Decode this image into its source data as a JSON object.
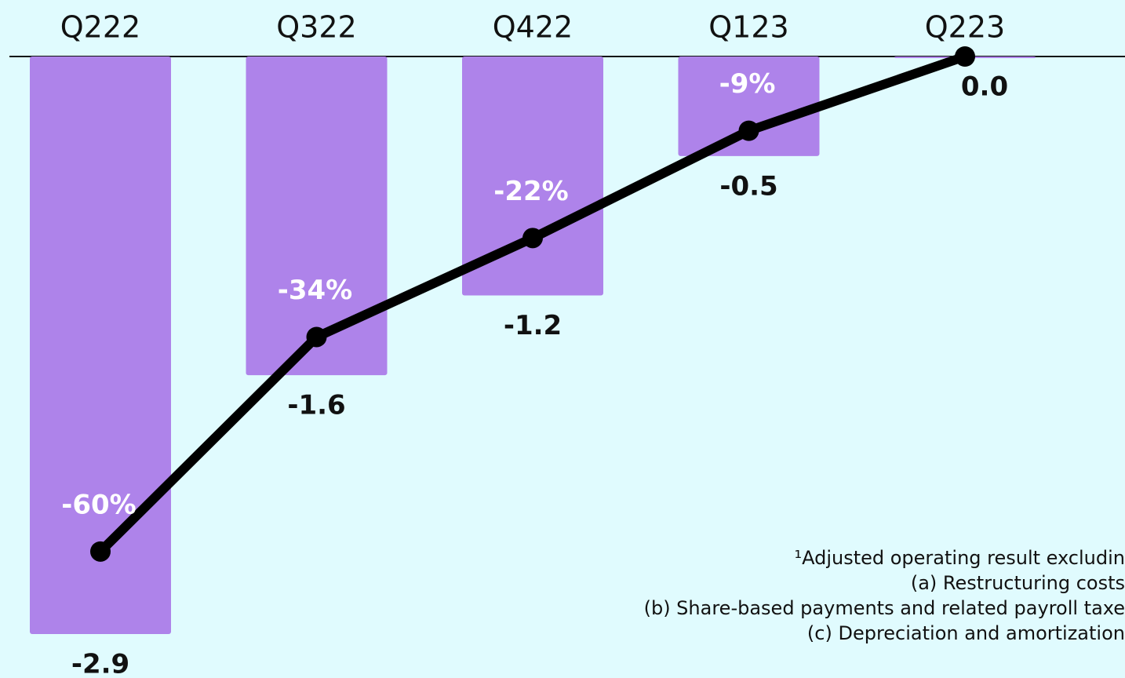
{
  "chart_data": {
    "type": "bar",
    "categories": [
      "Q222",
      "Q322",
      "Q422",
      "Q123",
      "Q223"
    ],
    "ylim": [
      -2.9,
      0
    ],
    "y2lim": [
      -70,
      0
    ],
    "series": [
      {
        "type": "bar",
        "color": "#ae83ea",
        "values": [
          -2.9,
          -1.6,
          -1.2,
          -0.5,
          0.0
        ],
        "value_labels": [
          "-2.9",
          "-1.6",
          "-1.2",
          "-0.5",
          "0.0"
        ]
      },
      {
        "type": "line",
        "axis": "y2",
        "color": "#000000",
        "values": [
          -60,
          -34,
          -22,
          -9,
          0
        ],
        "value_labels": [
          "-60%",
          "-34%",
          "-22%",
          "-9%",
          null
        ]
      }
    ],
    "notes": [
      "¹Adjusted operating result excludin",
      "(a) Restructuring costs",
      "(b) Share-based payments and related payroll taxe",
      "(c) Depreciation and amortization"
    ]
  }
}
